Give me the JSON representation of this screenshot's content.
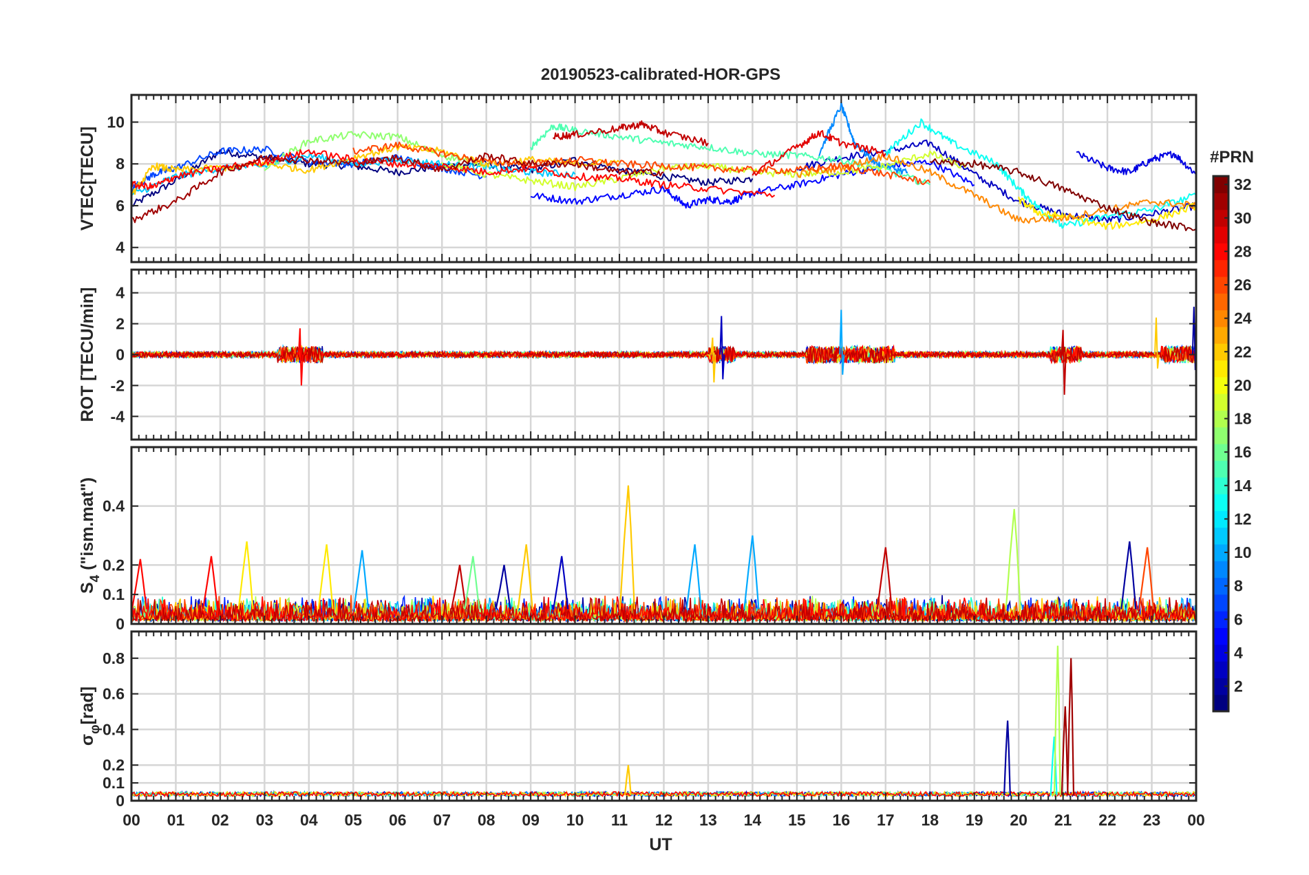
{
  "chart_data": {
    "type": "line",
    "title": "20190523-calibrated-HOR-GPS",
    "xlabel": "UT",
    "xlim": [
      0,
      24
    ],
    "x_tick_labels": [
      "00",
      "01",
      "02",
      "03",
      "04",
      "05",
      "06",
      "07",
      "08",
      "09",
      "10",
      "11",
      "12",
      "13",
      "14",
      "15",
      "16",
      "17",
      "18",
      "19",
      "20",
      "21",
      "22",
      "23",
      "00"
    ],
    "grid": true,
    "panels": [
      {
        "id": "vtec",
        "ylabel": "VTEC[TECU]",
        "ylim": [
          3.3,
          11.3
        ],
        "ticks": [
          4,
          6,
          8,
          10
        ],
        "tick_labels": [
          "4",
          "6",
          "8",
          "10"
        ],
        "series": [
          {
            "prn": 1,
            "x": [
              0,
              1,
              2,
              3,
              4,
              5,
              6,
              7,
              8,
              9,
              10,
              11,
              12,
              13,
              14
            ],
            "y": [
              6.0,
              7.2,
              8.6,
              8.3,
              8.0,
              7.9,
              7.6,
              7.9,
              8.0,
              7.7,
              8.2,
              7.7,
              7.4,
              7.1,
              7.3
            ]
          },
          {
            "prn": 3,
            "x": [
              15,
              16,
              17,
              18,
              19,
              20,
              21,
              22,
              23,
              24
            ],
            "y": [
              7.8,
              8.3,
              8.6,
              9.0,
              7.5,
              6.2,
              5.6,
              5.3,
              5.6,
              6.0
            ]
          },
          {
            "prn": 4,
            "x": [
              21.3,
              22,
              22.5,
              23,
              23.5,
              24
            ],
            "y": [
              8.5,
              7.8,
              7.6,
              8.2,
              8.5,
              7.5
            ]
          },
          {
            "prn": 5,
            "x": [
              9,
              10,
              11,
              12,
              12.5,
              13,
              13.5,
              14,
              15,
              16,
              17,
              18,
              19
            ],
            "y": [
              6.5,
              6.2,
              6.5,
              6.8,
              6.0,
              6.3,
              6.2,
              6.6,
              7.0,
              7.5,
              7.9,
              8.1,
              7.0
            ]
          },
          {
            "prn": 7,
            "x": [
              0,
              0.5,
              1,
              2,
              3,
              4,
              5,
              6,
              7,
              8
            ],
            "y": [
              6.8,
              7.5,
              7.8,
              8.6,
              8.7,
              8.1,
              8.0,
              8.3,
              7.8,
              7.4
            ]
          },
          {
            "prn": 9,
            "x": [
              15.5,
              16,
              16.3,
              16.8,
              17.5
            ],
            "y": [
              8.5,
              10.8,
              9.0,
              8.0,
              7.6
            ]
          },
          {
            "prn": 11,
            "x": [
              0,
              1,
              2,
              3,
              4,
              5,
              6,
              7,
              8,
              9,
              10
            ],
            "y": [
              6.5,
              7.4,
              7.8,
              7.9,
              8.4,
              8.0,
              8.2,
              8.0,
              7.8,
              7.6,
              7.5
            ]
          },
          {
            "prn": 13,
            "x": [
              17,
              17.8,
              18.5,
              19.5,
              20,
              20.5,
              21,
              22,
              23,
              24
            ],
            "y": [
              8.5,
              10.0,
              9.0,
              8.0,
              6.8,
              5.8,
              5.0,
              5.5,
              5.8,
              6.5
            ]
          },
          {
            "prn": 15,
            "x": [
              9,
              9.5,
              10,
              11,
              12,
              13,
              14,
              15,
              16,
              17,
              18
            ],
            "y": [
              8.8,
              9.8,
              9.6,
              9.3,
              9.0,
              8.8,
              8.5,
              8.4,
              8.2,
              7.7,
              7.0
            ]
          },
          {
            "prn": 17,
            "x": [
              3,
              4,
              5,
              6,
              7,
              8
            ],
            "y": [
              7.8,
              9.1,
              9.4,
              9.3,
              8.4,
              8.0
            ]
          },
          {
            "prn": 19,
            "x": [
              7,
              8,
              9,
              10,
              11,
              12,
              13,
              14,
              15,
              16,
              17,
              18,
              18.8
            ],
            "y": [
              8.0,
              7.5,
              7.2,
              6.9,
              7.3,
              7.8,
              7.9,
              7.6,
              7.5,
              7.6,
              7.9,
              8.5,
              7.8
            ]
          },
          {
            "prn": 21,
            "x": [
              20,
              20.5,
              21,
              22,
              23,
              24
            ],
            "y": [
              6.3,
              5.6,
              5.5,
              5.0,
              5.3,
              6.0
            ]
          },
          {
            "prn": 22,
            "x": [
              0,
              0.5,
              1,
              2,
              3,
              4,
              5,
              6,
              7,
              8,
              9,
              10,
              11
            ],
            "y": [
              6.5,
              7.9,
              7.7,
              7.8,
              8.0,
              7.7,
              8.3,
              8.8,
              8.6,
              8.0,
              8.2,
              8.0,
              8.1
            ]
          },
          {
            "prn": 24,
            "x": [
              15,
              16,
              17,
              18,
              19,
              20,
              21,
              22,
              23,
              24
            ],
            "y": [
              7.5,
              7.8,
              8.4,
              7.6,
              6.5,
              5.3,
              5.4,
              5.8,
              6.2,
              6.0
            ]
          },
          {
            "prn": 26,
            "x": [
              5,
              6,
              7,
              8,
              9,
              10,
              11,
              12,
              13,
              14,
              15,
              16,
              17,
              18
            ],
            "y": [
              8.6,
              8.9,
              8.5,
              8.1,
              8.0,
              8.2,
              8.0,
              7.9,
              7.8,
              7.7,
              7.7,
              7.9,
              7.5,
              7.1
            ]
          },
          {
            "prn": 28,
            "x": [
              0,
              0.5,
              1,
              2,
              3,
              4,
              5,
              6,
              7,
              8,
              9,
              10,
              11,
              12,
              13,
              14.5
            ],
            "y": [
              7.0,
              6.9,
              7.4,
              7.8,
              8.1,
              8.6,
              8.2,
              8.0,
              7.9,
              7.6,
              7.8,
              7.4,
              7.3,
              7.0,
              6.8,
              6.5
            ]
          },
          {
            "prn": 29,
            "x": [
              14,
              15,
              15.5,
              16,
              17
            ],
            "y": [
              7.5,
              8.8,
              9.5,
              9.0,
              8.5
            ]
          },
          {
            "prn": 30,
            "x": [
              9.5,
              10,
              11,
              11.5,
              12,
              13
            ],
            "y": [
              9.3,
              9.4,
              9.7,
              9.9,
              9.5,
              9.0
            ]
          },
          {
            "prn": 31,
            "x": [
              0,
              1,
              2,
              3,
              4,
              5,
              6,
              7,
              8,
              9,
              10,
              11,
              12
            ],
            "y": [
              5.3,
              6.2,
              7.6,
              8.3,
              8.2,
              8.0,
              8.3,
              7.7,
              8.4,
              8.0,
              8.0,
              7.6,
              7.6
            ]
          },
          {
            "prn": 32,
            "x": [
              18,
              19,
              20,
              21,
              22,
              23,
              24
            ],
            "y": [
              8.1,
              8.0,
              7.6,
              6.8,
              5.9,
              5.2,
              4.9
            ]
          }
        ]
      },
      {
        "id": "rot",
        "ylabel": "ROT [TECU/min]",
        "ylim": [
          -5.5,
          5.5
        ],
        "ticks": [
          -4,
          -2,
          0,
          2,
          4
        ],
        "tick_labels": [
          "-4",
          "-2",
          "0",
          "2",
          "4"
        ],
        "spikes": [
          {
            "prn": 28,
            "x": 3.8,
            "values": [
              1.7,
              -2.0
            ]
          },
          {
            "prn": 3,
            "x": 13.3,
            "values": [
              2.5,
              -1.6
            ]
          },
          {
            "prn": 22,
            "x": 13.1,
            "values": [
              1.1,
              -1.8
            ]
          },
          {
            "prn": 10,
            "x": 16.0,
            "values": [
              2.9,
              -1.3
            ]
          },
          {
            "prn": 30,
            "x": 21.0,
            "values": [
              1.6,
              -2.6
            ]
          },
          {
            "prn": 22,
            "x": 23.1,
            "values": [
              2.4,
              -0.9
            ]
          },
          {
            "prn": 2,
            "x": 23.95,
            "values": [
              3.1,
              -1.0
            ]
          }
        ]
      },
      {
        "id": "s4",
        "ylabel": "S4 (\"ism.mat\")",
        "ylabel_main": "S",
        "ylabel_sub": "4",
        "ylabel_rest": " (\"ism.mat\")",
        "ylim": [
          0,
          0.6
        ],
        "ticks": [
          0,
          0.1,
          0.2,
          0.4
        ],
        "tick_labels": [
          "0",
          "0.1",
          "0.2",
          "0.4"
        ],
        "peaks": [
          {
            "prn": 28,
            "x": 0.2,
            "value": 0.22
          },
          {
            "prn": 28,
            "x": 1.8,
            "value": 0.23
          },
          {
            "prn": 21,
            "x": 2.6,
            "value": 0.28
          },
          {
            "prn": 21,
            "x": 4.4,
            "value": 0.27
          },
          {
            "prn": 10,
            "x": 5.2,
            "value": 0.25
          },
          {
            "prn": 30,
            "x": 7.4,
            "value": 0.2
          },
          {
            "prn": 16,
            "x": 7.7,
            "value": 0.23
          },
          {
            "prn": 2,
            "x": 8.4,
            "value": 0.2
          },
          {
            "prn": 22,
            "x": 8.9,
            "value": 0.27
          },
          {
            "prn": 3,
            "x": 9.7,
            "value": 0.23
          },
          {
            "prn": 22,
            "x": 11.2,
            "value": 0.47
          },
          {
            "prn": 10,
            "x": 12.7,
            "value": 0.27
          },
          {
            "prn": 10,
            "x": 14.0,
            "value": 0.3
          },
          {
            "prn": 30,
            "x": 17.0,
            "value": 0.26
          },
          {
            "prn": 18,
            "x": 19.9,
            "value": 0.39
          },
          {
            "prn": 2,
            "x": 22.5,
            "value": 0.28
          },
          {
            "prn": 26,
            "x": 22.9,
            "value": 0.26
          }
        ]
      },
      {
        "id": "sigma_phi",
        "ylabel": "σφ[rad]",
        "ylabel_main": "σ",
        "ylabel_sub": "φ",
        "ylabel_rest": "[rad]",
        "ylim": [
          0,
          0.95
        ],
        "ticks": [
          0,
          0.1,
          0.2,
          0.4,
          0.6,
          0.8
        ],
        "tick_labels": [
          "0",
          "0.1",
          "0.2",
          "0.4",
          "0.6",
          "0.8"
        ],
        "peaks": [
          {
            "prn": 22,
            "x": 11.2,
            "value": 0.2
          },
          {
            "prn": 2,
            "x": 19.75,
            "value": 0.45
          },
          {
            "prn": 13,
            "x": 20.8,
            "value": 0.36
          },
          {
            "prn": 18,
            "x": 20.88,
            "value": 0.87
          },
          {
            "prn": 31,
            "x": 21.05,
            "value": 0.53
          },
          {
            "prn": 31,
            "x": 21.18,
            "value": 0.8
          }
        ]
      }
    ],
    "colorbar": {
      "label": "#PRN",
      "range": [
        1,
        32
      ],
      "ticks": [
        2,
        4,
        6,
        8,
        10,
        12,
        14,
        16,
        18,
        20,
        22,
        24,
        26,
        28,
        30,
        32
      ],
      "tick_labels": [
        "2",
        "4",
        "6",
        "8",
        "10",
        "12",
        "14",
        "16",
        "18",
        "20",
        "22",
        "24",
        "26",
        "28",
        "30",
        "32"
      ],
      "colormap": "jet"
    }
  }
}
